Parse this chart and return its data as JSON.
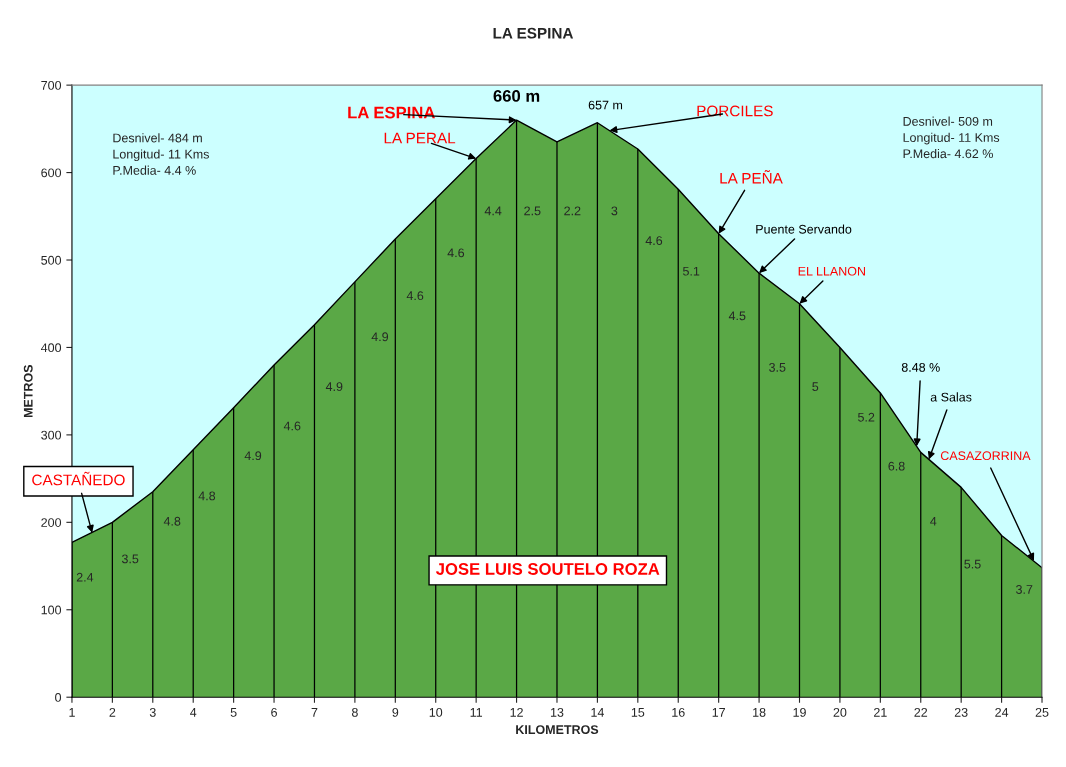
{
  "chart_data": {
    "type": "area",
    "title": "LA ESPINA",
    "xlabel": "KILOMETROS",
    "ylabel": "METROS",
    "x": [
      1,
      2,
      3,
      4,
      5,
      6,
      7,
      8,
      9,
      10,
      11,
      12,
      13,
      14,
      15,
      16,
      17,
      18,
      19,
      20,
      21,
      22,
      23,
      24,
      25
    ],
    "series": [
      {
        "color": "#5aa846",
        "values": [
          177,
          200,
          235,
          283,
          331,
          380,
          426,
          475,
          524,
          570,
          616,
          660,
          635,
          657,
          627,
          581,
          530,
          485,
          450,
          400,
          348,
          280,
          240,
          185,
          148
        ]
      }
    ],
    "xlim": [
      1,
      25
    ],
    "xticks": [
      1,
      2,
      3,
      4,
      5,
      6,
      7,
      8,
      9,
      10,
      11,
      12,
      13,
      14,
      15,
      16,
      17,
      18,
      19,
      20,
      21,
      22,
      23,
      24,
      25
    ],
    "ylim": [
      0,
      700
    ],
    "yticks": [
      0,
      100,
      200,
      300,
      400,
      500,
      600,
      700
    ],
    "grid": "x",
    "legend": false,
    "annotations": [
      {
        "text": "660 m",
        "x": 12,
        "y": 660
      },
      {
        "text": "657 m",
        "x": 14,
        "y": 657
      },
      {
        "text": "LA ESPINA",
        "x": 12,
        "y": 660
      },
      {
        "text": "LA PERAL",
        "x": 11,
        "y": 616
      },
      {
        "text": "PORCILES",
        "x": 14.3,
        "y": 648
      },
      {
        "text": "LA PEÑA",
        "x": 17,
        "y": 530
      },
      {
        "text": "Puente Servando",
        "x": 18,
        "y": 485
      },
      {
        "text": "EL LLANON",
        "x": 19,
        "y": 450
      },
      {
        "text": "8.48 %",
        "x": 21.9,
        "y": 287
      },
      {
        "text": "a Salas",
        "x": 22.2,
        "y": 272
      },
      {
        "text": "CASAZORRINA",
        "x": 24.8,
        "y": 156
      },
      {
        "text": "CASTAÑEDO",
        "x": 1.5,
        "y": 188
      },
      "2.4",
      "3.5",
      "4.8",
      "4.8",
      "4.9",
      "4.6",
      "4.9",
      "4.9",
      "4.6",
      "4.6",
      "4.4",
      "2.5",
      "2.2",
      "3",
      "4.6",
      "5.1",
      "4.5",
      "3.5",
      "5",
      "5.2",
      "6.8",
      "4",
      "5.5",
      "3.7",
      "Desnivel- 484 m\nLongitud- 11 Kms\nP.Media- 4.4 %",
      "Desnivel- 509 m\nLongitud- 11 Kms\nP.Media- 4.62 %",
      "JOSE LUIS SOUTELO ROZA"
    ]
  }
}
